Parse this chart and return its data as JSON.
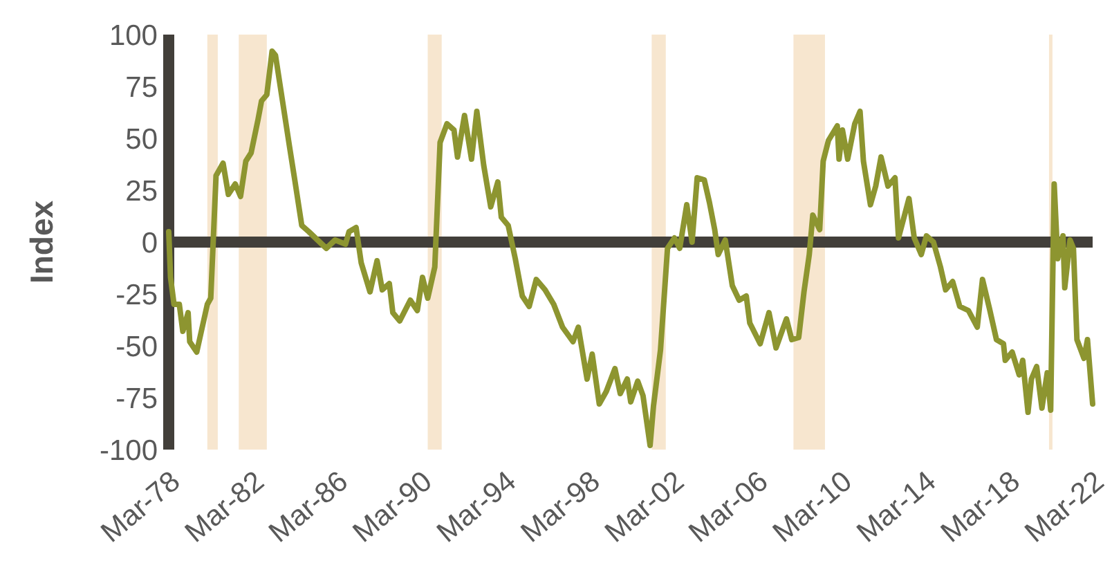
{
  "chart_data": {
    "type": "line",
    "ylabel": "Index",
    "xlim": [
      "1978-03",
      "2022-03"
    ],
    "xticks": [
      {
        "value": "1978-03",
        "label": "Mar-78"
      },
      {
        "value": "1982-03",
        "label": "Mar-82"
      },
      {
        "value": "1986-03",
        "label": "Mar-86"
      },
      {
        "value": "1990-03",
        "label": "Mar-90"
      },
      {
        "value": "1994-03",
        "label": "Mar-94"
      },
      {
        "value": "1998-03",
        "label": "Mar-98"
      },
      {
        "value": "2002-03",
        "label": "Mar-02"
      },
      {
        "value": "2006-03",
        "label": "Mar-06"
      },
      {
        "value": "2010-03",
        "label": "Mar-10"
      },
      {
        "value": "2014-03",
        "label": "Mar-14"
      },
      {
        "value": "2018-03",
        "label": "Mar-18"
      },
      {
        "value": "2022-03",
        "label": "Mar-22"
      }
    ],
    "ylim": [
      -100,
      100
    ],
    "yticks": [
      -100,
      -75,
      -50,
      -25,
      0,
      25,
      50,
      75,
      100
    ],
    "grid": false,
    "marker": "none",
    "line_style": "solid",
    "ref_lines": [
      {
        "axis": "y",
        "value": 0,
        "color": "#423f3a"
      }
    ],
    "bands": [
      {
        "axis": "x",
        "from": "1980-01",
        "to": "1980-07",
        "color": "#f7e6cf"
      },
      {
        "axis": "x",
        "from": "1981-07",
        "to": "1982-11",
        "color": "#f7e6cf"
      },
      {
        "axis": "x",
        "from": "1990-07",
        "to": "1991-03",
        "color": "#f7e6cf"
      },
      {
        "axis": "x",
        "from": "2001-03",
        "to": "2001-11",
        "color": "#f7e6cf"
      },
      {
        "axis": "x",
        "from": "2007-12",
        "to": "2009-06",
        "color": "#f7e6cf"
      },
      {
        "axis": "x",
        "from": "2020-02",
        "to": "2020-04",
        "color": "#f7e6cf"
      }
    ],
    "series": [
      {
        "color": "#8d9530",
        "x": [
          "1978-03",
          "1978-04",
          "1978-06",
          "1978-09",
          "1978-11",
          "1979-02",
          "1979-03",
          "1979-07",
          "1980-01",
          "1980-03",
          "1980-06",
          "1980-10",
          "1981-01",
          "1981-05",
          "1981-08",
          "1981-11",
          "1982-02",
          "1982-06",
          "1982-08",
          "1982-11",
          "1983-02",
          "1983-04",
          "1983-08",
          "1983-12",
          "1984-03",
          "1984-07",
          "1984-11",
          "1985-04",
          "1985-09",
          "1986-02",
          "1986-08",
          "1986-10",
          "1987-02",
          "1987-05",
          "1987-10",
          "1988-02",
          "1988-05",
          "1988-09",
          "1988-11",
          "1989-03",
          "1989-09",
          "1990-01",
          "1990-04",
          "1990-07",
          "1990-11",
          "1991-02",
          "1991-06",
          "1991-10",
          "1991-12",
          "1992-04",
          "1992-08",
          "1992-11",
          "1993-03",
          "1993-07",
          "1993-11",
          "1994-01",
          "1994-05",
          "1994-09",
          "1995-01",
          "1995-05",
          "1995-09",
          "1996-02",
          "1996-07",
          "1996-12",
          "1997-06",
          "1997-09",
          "1998-02",
          "1998-05",
          "1998-09",
          "1999-01",
          "1999-06",
          "1999-09",
          "2000-01",
          "2000-03",
          "2000-07",
          "2000-10",
          "2001-02",
          "2001-04",
          "2001-08",
          "2001-12",
          "2002-04",
          "2002-07",
          "2002-11",
          "2003-02",
          "2003-05",
          "2003-09",
          "2003-12",
          "2004-03",
          "2004-05",
          "2004-09",
          "2005-01",
          "2005-05",
          "2005-09",
          "2005-11",
          "2006-05",
          "2006-10",
          "2007-02",
          "2007-08",
          "2007-11",
          "2008-03",
          "2008-06",
          "2008-09",
          "2008-11",
          "2009-03",
          "2009-05",
          "2009-08",
          "2010-01",
          "2010-02",
          "2010-04",
          "2010-07",
          "2010-11",
          "2011-02",
          "2011-04",
          "2011-08",
          "2011-11",
          "2012-02",
          "2012-06",
          "2012-10",
          "2012-12",
          "2013-06",
          "2013-09",
          "2014-01",
          "2014-04",
          "2014-08",
          "2014-12",
          "2015-03",
          "2015-07",
          "2015-11",
          "2016-04",
          "2016-09",
          "2016-12",
          "2017-04",
          "2017-08",
          "2017-12",
          "2018-01",
          "2018-05",
          "2018-09",
          "2018-11",
          "2019-02",
          "2019-04",
          "2019-07",
          "2019-10",
          "2020-01",
          "2020-03",
          "2020-05",
          "2020-07",
          "2020-10",
          "2020-11",
          "2021-02",
          "2021-04",
          "2021-06",
          "2021-10",
          "2021-12",
          "2022-03"
        ],
        "values": [
          5,
          -17,
          -30,
          -30,
          -43,
          -34,
          -48,
          -53,
          -30,
          -27,
          32,
          38,
          23,
          28,
          22,
          39,
          43,
          59,
          68,
          71,
          92,
          90,
          68,
          46,
          30,
          8,
          5,
          1,
          -3,
          1,
          -1,
          5,
          7,
          -10,
          -24,
          -9,
          -23,
          -20,
          -34,
          -38,
          -28,
          -33,
          -17,
          -27,
          -12,
          48,
          57,
          54,
          41,
          61,
          40,
          63,
          37,
          17,
          29,
          12,
          8,
          -8,
          -26,
          -31,
          -18,
          -23,
          -30,
          -41,
          -48,
          -41,
          -66,
          -54,
          -78,
          -72,
          -61,
          -73,
          -66,
          -77,
          -67,
          -74,
          -98,
          -79,
          -52,
          -3,
          2,
          -3,
          18,
          0,
          31,
          30,
          19,
          6,
          -6,
          1,
          -21,
          -28,
          -26,
          -39,
          -49,
          -34,
          -51,
          -37,
          -47,
          -46,
          -24,
          -6,
          13,
          6,
          39,
          49,
          56,
          40,
          54,
          40,
          57,
          63,
          39,
          18,
          27,
          41,
          27,
          31,
          2,
          21,
          2,
          -6,
          3,
          0,
          -12,
          -23,
          -19,
          -31,
          -33,
          -41,
          -18,
          -32,
          -47,
          -49,
          -57,
          -53,
          -64,
          -57,
          -82,
          -66,
          -60,
          -80,
          -63,
          -81,
          28,
          -8,
          3,
          -22,
          1,
          -3,
          -47,
          -56,
          -47,
          -78
        ]
      }
    ]
  }
}
